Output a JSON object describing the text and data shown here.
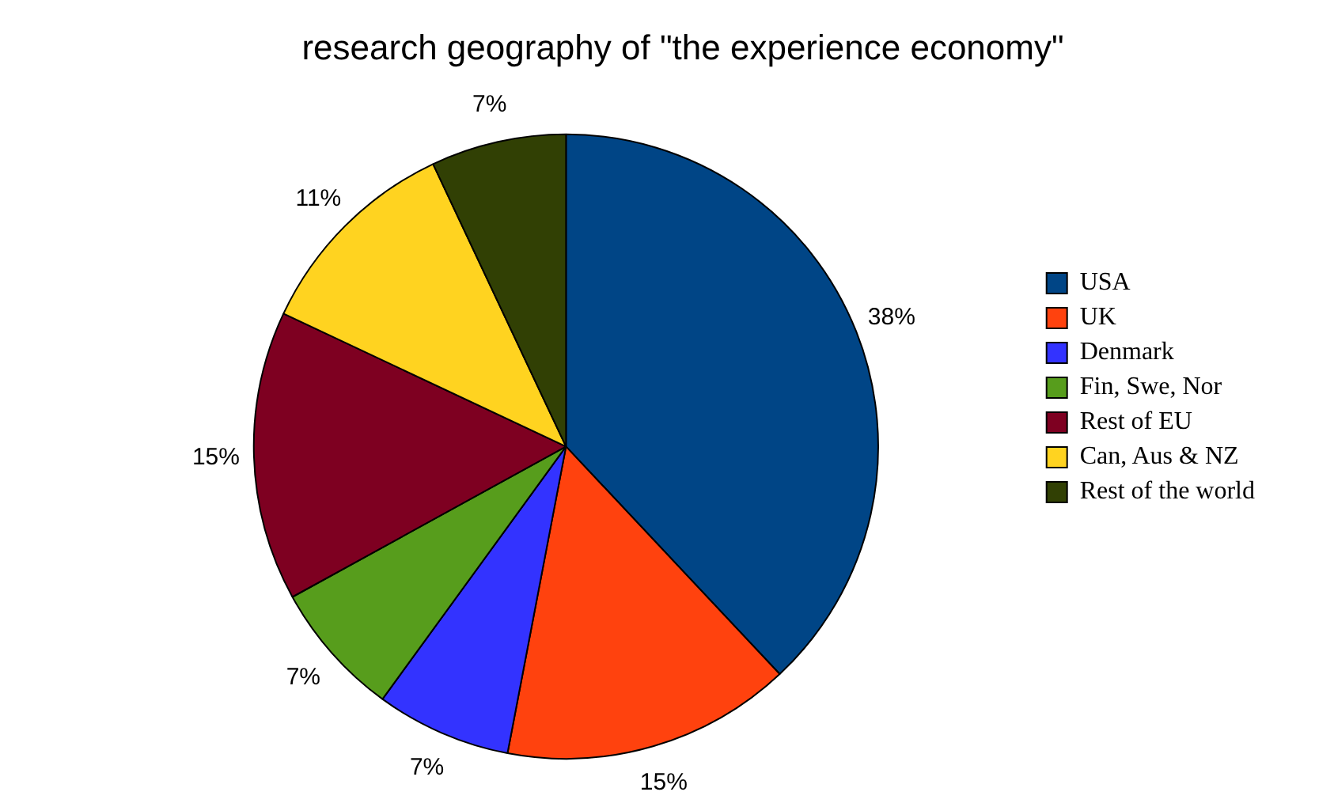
{
  "chart_data": {
    "type": "pie",
    "title": "research geography of \"the experience economy\"",
    "categories": [
      "USA",
      "UK",
      "Denmark",
      "Fin, Swe, Nor",
      "Rest of EU",
      "Can, Aus & NZ",
      "Rest of the world"
    ],
    "values": [
      38,
      15,
      7,
      7,
      15,
      11,
      7
    ],
    "colors": [
      "#004586",
      "#ff420e",
      "#3333ff",
      "#579d1c",
      "#7e0021",
      "#ffd320",
      "#314004"
    ],
    "value_labels": [
      "38%",
      "15%",
      "7%",
      "7%",
      "15%",
      "11%",
      "7%"
    ],
    "legend": "right"
  }
}
